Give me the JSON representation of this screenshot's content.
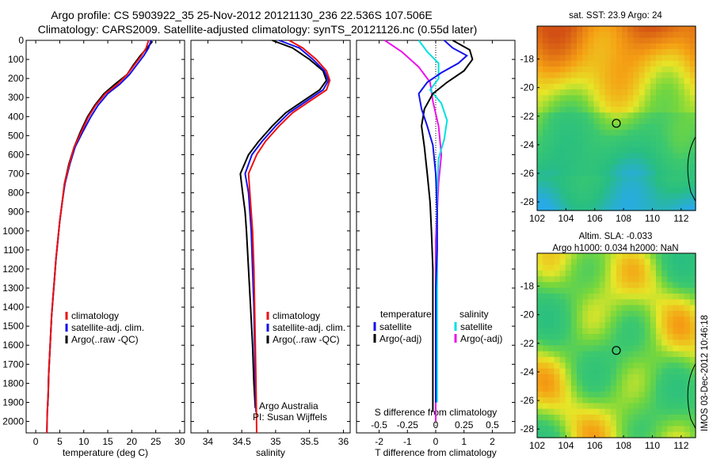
{
  "header": {
    "line1": "Argo profile: CS 5903922_35 25-Nov-2012 20121130_236 22.536S 107.506E",
    "line2": "Climatology: CARS2009. Satellite-adjusted climatology: synTS_20121126.nc (0.55d later)"
  },
  "side_label": "IMOS 03-Dec-2012 10:46:18",
  "colors": {
    "clim": "#ee1111",
    "sat": "#1111ee",
    "argo": "#000000",
    "cyan": "#00e0e0",
    "magenta": "#ee11ee"
  },
  "map_legend_text": {
    "sst_title": "sat. SST: 23.9 Argo: 24",
    "sla_title1": "Altim. SLA: -0.033",
    "sla_title2": "Argo h1000: 0.034 h2000: NaN"
  },
  "chart_data": [
    {
      "id": "temperature",
      "type": "line",
      "xlabel": "temperature (deg C)",
      "ylabel": "",
      "xlim": [
        -2,
        31
      ],
      "ylim": [
        2060,
        0
      ],
      "xticks": [
        0,
        5,
        10,
        15,
        20,
        25,
        30
      ],
      "yticks": [
        0,
        100,
        200,
        300,
        400,
        500,
        600,
        700,
        800,
        900,
        1000,
        1100,
        1200,
        1300,
        1400,
        1500,
        1600,
        1700,
        1800,
        1900,
        2000
      ],
      "legend": [
        "climatology",
        "satellite-adj. clim.",
        "Argo(..raw -QC)"
      ],
      "series": [
        {
          "name": "climatology",
          "color": "clim",
          "points": [
            [
              23.5,
              0
            ],
            [
              23,
              40
            ],
            [
              22,
              80
            ],
            [
              20.5,
              130
            ],
            [
              19,
              180
            ],
            [
              17,
              230
            ],
            [
              14.5,
              280
            ],
            [
              12.5,
              340
            ],
            [
              11,
              400
            ],
            [
              9.5,
              480
            ],
            [
              8,
              560
            ],
            [
              7,
              650
            ],
            [
              6,
              750
            ],
            [
              5.5,
              850
            ],
            [
              5,
              950
            ],
            [
              4.6,
              1050
            ],
            [
              4.2,
              1150
            ],
            [
              3.9,
              1250
            ],
            [
              3.6,
              1350
            ],
            [
              3.3,
              1450
            ],
            [
              3.1,
              1550
            ],
            [
              2.9,
              1650
            ],
            [
              2.7,
              1750
            ],
            [
              2.6,
              1850
            ],
            [
              2.4,
              1950
            ],
            [
              2.3,
              2060
            ]
          ]
        },
        {
          "name": "satellite-adj. clim.",
          "color": "sat",
          "points": [
            [
              24,
              0
            ],
            [
              23.5,
              40
            ],
            [
              22.5,
              80
            ],
            [
              21,
              130
            ],
            [
              19.5,
              180
            ],
            [
              17.5,
              230
            ],
            [
              15,
              280
            ],
            [
              13,
              340
            ],
            [
              11.5,
              400
            ],
            [
              9.8,
              480
            ],
            [
              8.2,
              560
            ],
            [
              7.1,
              650
            ],
            [
              6.1,
              750
            ],
            [
              5.5,
              850
            ],
            [
              5,
              950
            ],
            [
              4.6,
              1050
            ],
            [
              4.2,
              1150
            ],
            [
              3.9,
              1250
            ],
            [
              3.6,
              1350
            ],
            [
              3.3,
              1450
            ],
            [
              3.1,
              1550
            ],
            [
              2.9,
              1650
            ],
            [
              2.7,
              1750
            ],
            [
              2.6,
              1850
            ],
            [
              2.4,
              1950
            ],
            [
              2.3,
              2060
            ]
          ]
        },
        {
          "name": "Argo(..raw -QC)",
          "color": "argo",
          "points": [
            [
              24.3,
              5
            ],
            [
              23.2,
              40
            ],
            [
              21.8,
              80
            ],
            [
              20.3,
              130
            ],
            [
              19,
              180
            ],
            [
              16.5,
              230
            ],
            [
              14.2,
              280
            ],
            [
              12.3,
              340
            ],
            [
              10.8,
              400
            ],
            [
              9.3,
              480
            ],
            [
              8,
              560
            ],
            [
              6.9,
              650
            ],
            [
              6,
              750
            ],
            [
              5.5,
              850
            ],
            [
              5,
              950
            ],
            [
              4.6,
              1050
            ],
            [
              4.2,
              1150
            ],
            [
              3.9,
              1250
            ],
            [
              3.6,
              1350
            ],
            [
              3.3,
              1450
            ],
            [
              3.1,
              1550
            ],
            [
              2.9,
              1650
            ],
            [
              2.7,
              1750
            ],
            [
              2.6,
              1850
            ],
            [
              2.5,
              1920
            ]
          ]
        }
      ]
    },
    {
      "id": "salinity",
      "type": "line",
      "xlabel": "salinity",
      "ylabel": "",
      "xlim": [
        33.75,
        36.1
      ],
      "ylim": [
        2060,
        0
      ],
      "xticks": [
        34,
        34.5,
        35,
        35.5,
        36
      ],
      "legend": [
        "climatology",
        "satellite-adj. clim.",
        "Argo(..raw -QC)"
      ],
      "annotations": [
        "Argo Australia",
        "PI: Susan Wijffels"
      ],
      "series": [
        {
          "name": "climatology",
          "color": "clim",
          "points": [
            [
              35.2,
              0
            ],
            [
              35.4,
              40
            ],
            [
              35.6,
              100
            ],
            [
              35.75,
              160
            ],
            [
              35.8,
              210
            ],
            [
              35.75,
              260
            ],
            [
              35.5,
              320
            ],
            [
              35.25,
              380
            ],
            [
              35.05,
              450
            ],
            [
              34.85,
              530
            ],
            [
              34.72,
              600
            ],
            [
              34.6,
              700
            ],
            [
              34.62,
              800
            ],
            [
              34.64,
              900
            ],
            [
              34.66,
              1000
            ],
            [
              34.68,
              1200
            ],
            [
              34.69,
              1400
            ],
            [
              34.7,
              1600
            ],
            [
              34.71,
              1800
            ],
            [
              34.72,
              2060
            ]
          ]
        },
        {
          "name": "satellite-adj. clim.",
          "color": "sat",
          "points": [
            [
              35.05,
              0
            ],
            [
              35.35,
              40
            ],
            [
              35.55,
              100
            ],
            [
              35.72,
              160
            ],
            [
              35.78,
              210
            ],
            [
              35.7,
              260
            ],
            [
              35.45,
              320
            ],
            [
              35.2,
              380
            ],
            [
              35,
              450
            ],
            [
              34.8,
              530
            ],
            [
              34.65,
              600
            ],
            [
              34.55,
              700
            ],
            [
              34.6,
              800
            ],
            [
              34.62,
              900
            ],
            [
              34.64,
              1000
            ],
            [
              34.66,
              1200
            ],
            [
              34.68,
              1400
            ],
            [
              34.69,
              1600
            ],
            [
              34.7,
              1800
            ],
            [
              34.71,
              1950
            ]
          ]
        },
        {
          "name": "Argo(..raw -QC)",
          "color": "argo",
          "points": [
            [
              34.95,
              0
            ],
            [
              35.25,
              40
            ],
            [
              35.5,
              100
            ],
            [
              35.7,
              160
            ],
            [
              35.75,
              210
            ],
            [
              35.65,
              260
            ],
            [
              35.4,
              320
            ],
            [
              35.15,
              380
            ],
            [
              34.95,
              450
            ],
            [
              34.75,
              530
            ],
            [
              34.6,
              600
            ],
            [
              34.48,
              700
            ],
            [
              34.5,
              760
            ],
            [
              34.52,
              820
            ],
            [
              34.55,
              900
            ],
            [
              34.57,
              1000
            ],
            [
              34.6,
              1200
            ],
            [
              34.63,
              1400
            ],
            [
              34.66,
              1600
            ],
            [
              34.68,
              1800
            ],
            [
              34.7,
              1930
            ]
          ]
        }
      ]
    },
    {
      "id": "differences",
      "type": "line",
      "xlabel": "T difference from climatology",
      "x2label": "S difference from climatology",
      "xlim": [
        -2.8,
        2.8
      ],
      "ylim": [
        2060,
        0
      ],
      "xticks": [
        -2,
        -1,
        0,
        1,
        2
      ],
      "x2tick_labels": [
        "-0.5",
        "-0.25",
        "0",
        "0.25",
        "0.5"
      ],
      "x2tick_positions": [
        -2,
        -1,
        0,
        1,
        2
      ],
      "legend_left_title": "temperature",
      "legend_right_title": "salinity",
      "legend": [
        "satellite",
        "Argo(-adj)",
        "satellite",
        "Argo(-adj)"
      ],
      "series": [
        {
          "name": "satellite",
          "group": "temperature",
          "color": "sat",
          "points": [
            [
              0.3,
              0
            ],
            [
              0.6,
              40
            ],
            [
              1.1,
              80
            ],
            [
              0.8,
              120
            ],
            [
              0.2,
              170
            ],
            [
              -0.3,
              220
            ],
            [
              -0.6,
              280
            ],
            [
              -0.5,
              360
            ],
            [
              -0.3,
              450
            ],
            [
              -0.1,
              550
            ],
            [
              0,
              700
            ],
            [
              0.05,
              900
            ],
            [
              0.05,
              1100
            ],
            [
              0,
              1300
            ],
            [
              0,
              1500
            ],
            [
              0,
              1700
            ],
            [
              0,
              1900
            ]
          ]
        },
        {
          "name": "Argo(-adj)",
          "group": "temperature",
          "color": "argo",
          "points": [
            [
              0.6,
              0
            ],
            [
              1.2,
              50
            ],
            [
              1.3,
              100
            ],
            [
              1.0,
              160
            ],
            [
              0.4,
              220
            ],
            [
              -0.1,
              280
            ],
            [
              -0.4,
              360
            ],
            [
              -0.5,
              450
            ],
            [
              -0.4,
              560
            ],
            [
              -0.3,
              700
            ],
            [
              -0.2,
              850
            ],
            [
              -0.15,
              1000
            ],
            [
              -0.1,
              1200
            ],
            [
              -0.1,
              1400
            ],
            [
              -0.1,
              1600
            ],
            [
              -0.1,
              1800
            ],
            [
              -0.1,
              1950
            ]
          ]
        },
        {
          "name": "satellite",
          "group": "salinity",
          "color": "cyan",
          "points": [
            [
              -0.6,
              0
            ],
            [
              -0.3,
              60
            ],
            [
              0.1,
              120
            ],
            [
              0.1,
              200
            ],
            [
              -0.2,
              260
            ],
            [
              0.2,
              330
            ],
            [
              0.4,
              420
            ],
            [
              0.3,
              520
            ],
            [
              0.1,
              620
            ],
            [
              0.05,
              800
            ],
            [
              0.05,
              1000
            ],
            [
              0.05,
              1300
            ],
            [
              0.05,
              1600
            ],
            [
              0.05,
              1900
            ]
          ]
        },
        {
          "name": "Argo(-adj)",
          "group": "salinity",
          "color": "magenta",
          "points": [
            [
              -1.8,
              0
            ],
            [
              -1.2,
              60
            ],
            [
              -0.6,
              140
            ],
            [
              -0.2,
              220
            ],
            [
              -0.1,
              320
            ],
            [
              0.1,
              450
            ],
            [
              0.2,
              600
            ],
            [
              0.1,
              750
            ],
            [
              0.05,
              900
            ],
            [
              0,
              1050
            ],
            [
              0,
              1250
            ],
            [
              0,
              1450
            ],
            [
              0,
              1650
            ],
            [
              0,
              1850
            ],
            [
              0,
              2000
            ]
          ]
        }
      ]
    },
    {
      "id": "sst_map",
      "type": "heatmap",
      "title": "sat. SST: 23.9 Argo: 24",
      "xlim": [
        102,
        113
      ],
      "ylim": [
        -28.6,
        -15.7
      ],
      "xticks": [
        102,
        104,
        106,
        108,
        110,
        112
      ],
      "yticks": [
        -18,
        -20,
        -22,
        -24,
        -26,
        -28
      ],
      "argo_location": [
        107.5,
        -22.5
      ]
    },
    {
      "id": "sla_map",
      "type": "heatmap",
      "title": "Altim. SLA: -0.033",
      "subtitle": "Argo h1000: 0.034 h2000: NaN",
      "xlim": [
        102,
        113
      ],
      "ylim": [
        -28.6,
        -15.7
      ],
      "xticks": [
        102,
        104,
        106,
        108,
        110,
        112
      ],
      "yticks": [
        -18,
        -20,
        -22,
        -24,
        -26,
        -28
      ],
      "argo_location": [
        107.5,
        -22.5
      ]
    }
  ]
}
